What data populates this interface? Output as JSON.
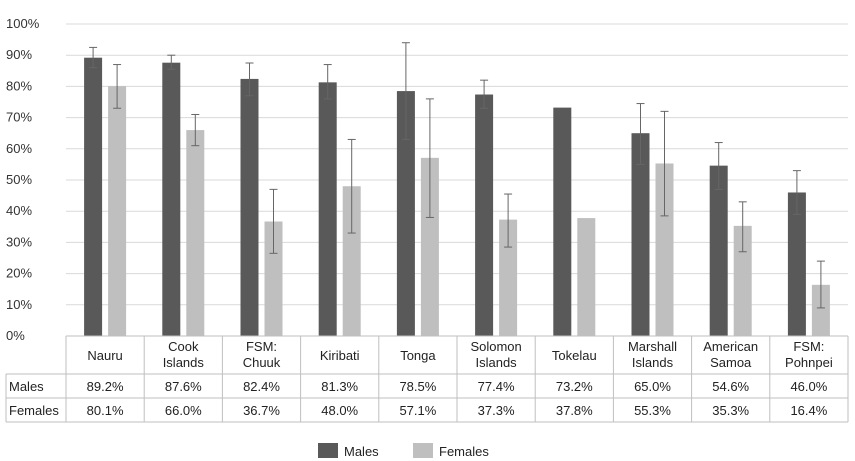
{
  "chart_data": {
    "type": "bar",
    "categories": [
      [
        "Nauru"
      ],
      [
        "Cook",
        "Islands"
      ],
      [
        "FSM:",
        "Chuuk"
      ],
      [
        "Kiribati"
      ],
      [
        "Tonga"
      ],
      [
        "Solomon",
        "Islands"
      ],
      [
        "Tokelau"
      ],
      [
        "Marshall",
        "Islands"
      ],
      [
        "American",
        "Samoa"
      ],
      [
        "FSM:",
        "Pohnpei"
      ]
    ],
    "series": [
      {
        "name": "Males",
        "color": "#595959",
        "values": [
          89.2,
          87.6,
          82.4,
          81.3,
          78.5,
          77.4,
          73.2,
          65.0,
          54.6,
          46.0
        ],
        "labels": [
          "89.2%",
          "87.6%",
          "82.4%",
          "81.3%",
          "78.5%",
          "77.4%",
          "73.2%",
          "65.0%",
          "54.6%",
          "46.0%"
        ],
        "error_low": [
          86.0,
          85.5,
          77.0,
          76.0,
          63.0,
          73.0,
          null,
          55.0,
          47.0,
          39.0
        ],
        "error_high": [
          92.5,
          90.0,
          87.5,
          87.0,
          94.0,
          82.0,
          null,
          74.5,
          62.0,
          53.0
        ]
      },
      {
        "name": "Females",
        "color": "#bfbfbf",
        "values": [
          80.1,
          66.0,
          36.7,
          48.0,
          57.1,
          37.3,
          37.8,
          55.3,
          35.3,
          16.4
        ],
        "labels": [
          "80.1%",
          "66.0%",
          "36.7%",
          "48.0%",
          "57.1%",
          "37.3%",
          "37.8%",
          "55.3%",
          "35.3%",
          "16.4%"
        ],
        "error_low": [
          73.0,
          61.0,
          26.5,
          33.0,
          38.0,
          28.5,
          null,
          38.5,
          27.0,
          9.0
        ],
        "error_high": [
          87.0,
          71.0,
          47.0,
          63.0,
          76.0,
          45.5,
          null,
          72.0,
          43.0,
          24.0
        ]
      }
    ],
    "ylim": [
      0,
      100
    ],
    "yticks": [
      "0%",
      "10%",
      "20%",
      "30%",
      "40%",
      "50%",
      "60%",
      "70%",
      "80%",
      "90%",
      "100%"
    ],
    "grid": true,
    "legend_position": "bottom-center",
    "data_table": true
  }
}
